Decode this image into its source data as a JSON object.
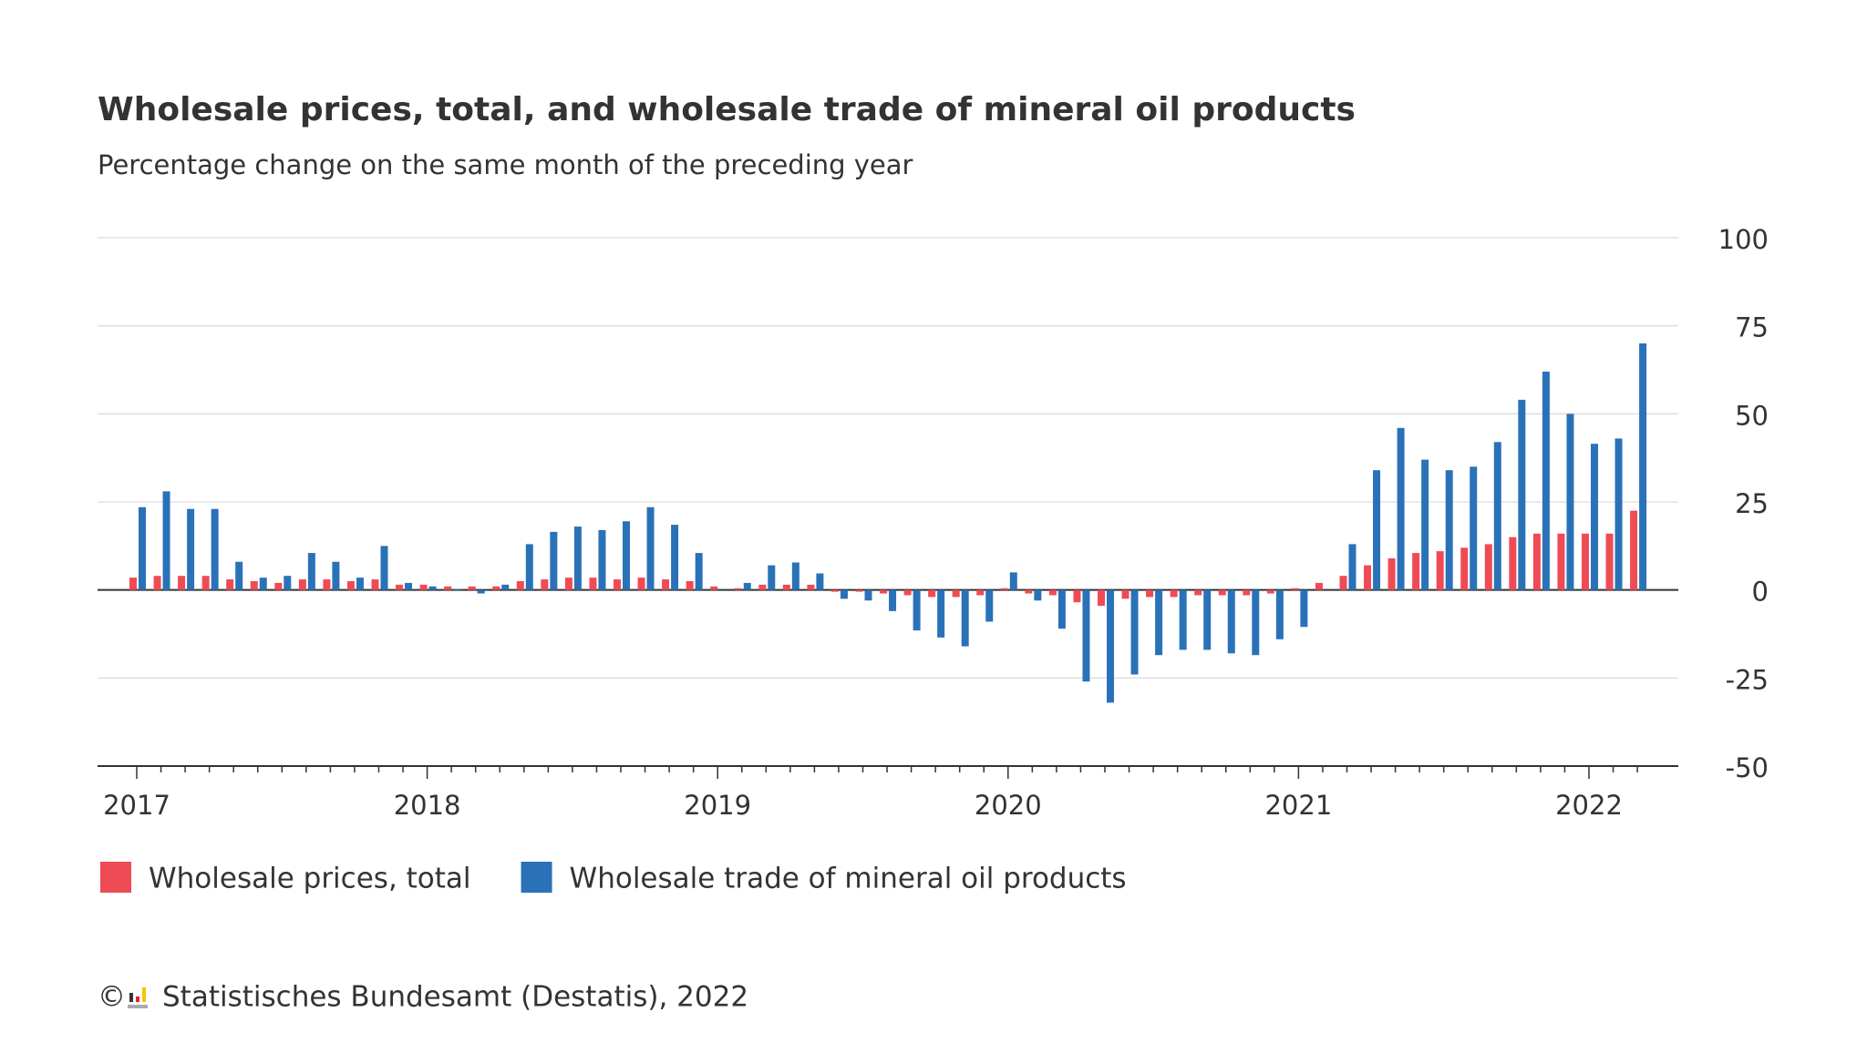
{
  "chart_data": {
    "type": "bar",
    "title": "Wholesale prices, total, and wholesale trade of mineral oil products",
    "subtitle": "Percentage change on the same month of the preceding year",
    "categories": [
      "2017",
      null,
      null,
      null,
      null,
      null,
      null,
      null,
      null,
      null,
      null,
      null,
      "2018",
      null,
      null,
      null,
      null,
      null,
      null,
      null,
      null,
      null,
      null,
      null,
      "2019",
      null,
      null,
      null,
      null,
      null,
      null,
      null,
      null,
      null,
      null,
      null,
      "2020",
      null,
      null,
      null,
      null,
      null,
      null,
      null,
      null,
      null,
      null,
      null,
      "2021",
      null,
      null,
      null,
      null,
      null,
      null,
      null,
      null,
      null,
      null,
      null,
      "2022",
      null,
      null
    ],
    "series": [
      {
        "name": "Wholesale prices, total",
        "color": "#ef4b55",
        "values": [
          3.5,
          4,
          4,
          4,
          3,
          2.5,
          2,
          3,
          3,
          2.5,
          3,
          1.5,
          1.5,
          1,
          1,
          1,
          2.5,
          3,
          3.5,
          3.5,
          3,
          3.5,
          3,
          2.5,
          1,
          0.5,
          1.5,
          1.5,
          1.5,
          -0.5,
          -0.5,
          -1,
          -1.5,
          -2,
          -2,
          -1.5,
          0.5,
          -1,
          -1.5,
          -3.5,
          -4.5,
          -2.5,
          -2,
          -2,
          -1.5,
          -1.5,
          -1.5,
          -1,
          0.5,
          2,
          4,
          7,
          9,
          10.5,
          11,
          12,
          13,
          15,
          16,
          16,
          16,
          16,
          22.5
        ]
      },
      {
        "name": "Wholesale trade of mineral oil products",
        "color": "#2a72b8",
        "values": [
          23.5,
          28,
          23,
          23,
          8,
          3.5,
          4,
          10.5,
          8,
          3.5,
          12.5,
          2,
          1,
          0.3,
          -1,
          1.5,
          13,
          16.5,
          18,
          17,
          19.5,
          23.5,
          18.5,
          10.5,
          0,
          2,
          7,
          7.8,
          4.7,
          -2.5,
          -3,
          -6,
          -11.5,
          -13.5,
          -16,
          -9,
          5,
          -3,
          -11,
          -26,
          -32,
          -24,
          -18.5,
          -17,
          -17,
          -18,
          -18.5,
          -14,
          -10.5,
          0,
          13,
          34,
          46,
          37,
          34,
          35,
          42,
          54,
          62,
          50,
          41.5,
          43,
          70
        ]
      }
    ],
    "ylim": [
      -50,
      100
    ],
    "yticks": [
      100,
      75,
      50,
      25,
      0,
      -25,
      -50
    ],
    "grid": true,
    "legend": "bottom-left",
    "copyright": "©",
    "source": "Statistisches Bundesamt (Destatis), 2022"
  }
}
